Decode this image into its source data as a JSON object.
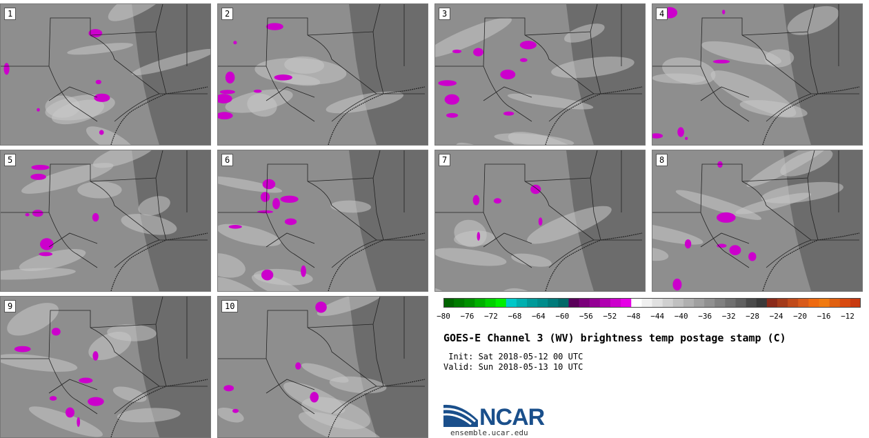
{
  "panels": [
    {
      "label": "1"
    },
    {
      "label": "2"
    },
    {
      "label": "3"
    },
    {
      "label": "4"
    },
    {
      "label": "5"
    },
    {
      "label": "6"
    },
    {
      "label": "7"
    },
    {
      "label": "8"
    },
    {
      "label": "9"
    },
    {
      "label": "10"
    }
  ],
  "colorbar": {
    "ticks": [
      "−80",
      "−76",
      "−72",
      "−68",
      "−64",
      "−60",
      "−56",
      "−52",
      "−48",
      "−44",
      "−40",
      "−36",
      "−32",
      "−28",
      "−24",
      "−20",
      "−16",
      "−12"
    ],
    "colors": [
      "#006400",
      "#007a00",
      "#009000",
      "#00b000",
      "#00d000",
      "#00ee00",
      "#00c8c8",
      "#00b0b0",
      "#009a9a",
      "#008c8c",
      "#007a7a",
      "#006868",
      "#5a005a",
      "#7a007a",
      "#940094",
      "#b000b0",
      "#cc00cc",
      "#e600e6",
      "#ffffff",
      "#f0f0f0",
      "#e0e0e0",
      "#d0d0d0",
      "#c0c0c0",
      "#b0b0b0",
      "#a0a0a0",
      "#909090",
      "#808080",
      "#707070",
      "#606060",
      "#4a4a4a",
      "#3a3a3a",
      "#8a2a1a",
      "#a33a1a",
      "#c04a1a",
      "#d85a1a",
      "#ee6a10",
      "#f07a10",
      "#e06010",
      "#d84a10",
      "#c83a10"
    ]
  },
  "header": {
    "title": "GOES-E Channel 3 (WV) brightness temp postage stamp (C)",
    "init": " Init: Sat 2018-05-12 00 UTC",
    "valid": "Valid: Sun 2018-05-13 10 UTC"
  },
  "logo": {
    "name": "NCAR",
    "url": "ensemble.ucar.edu"
  },
  "colors": {
    "bg_gray": "#8e8e8e",
    "dark_gray": "#5e5e5e",
    "light_gray": "#c8c8c8",
    "cold_magenta": "#cc00cc",
    "border": "#222222"
  }
}
